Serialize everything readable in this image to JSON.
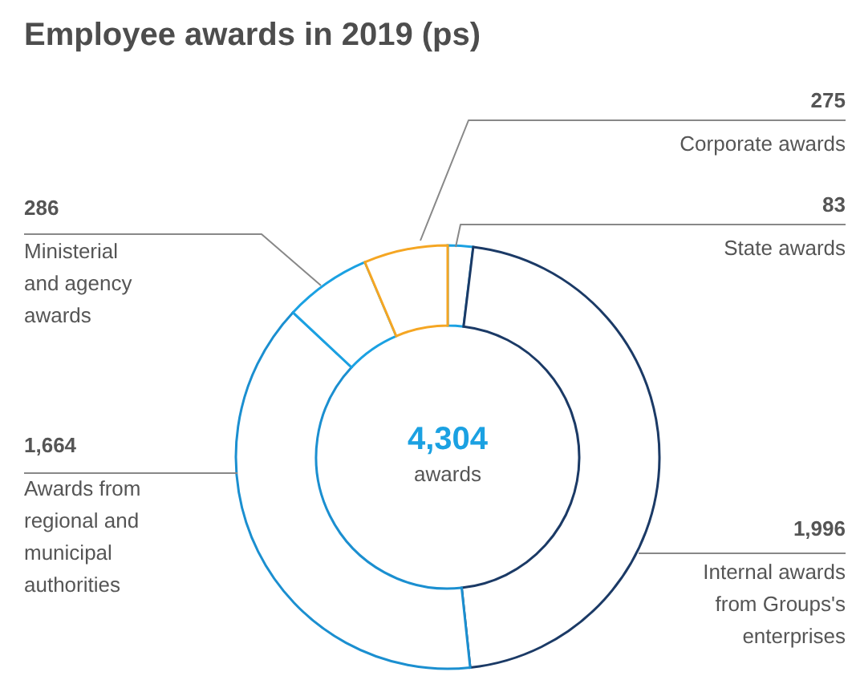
{
  "chart_data": {
    "type": "donut",
    "title": "Employee awards in 2019 (ps)",
    "categories": [
      "State awards",
      "Internal awards from Groups's enterprises",
      "Awards from regional and municipal authorities",
      "Ministerial and agency awards",
      "Corporate awards"
    ],
    "values": [
      83,
      1996,
      1664,
      286,
      275
    ],
    "value_labels": [
      "83",
      "1,996",
      "1,664",
      "286",
      "275"
    ],
    "colors": [
      "#1ba1e2",
      "#1b3a66",
      "#1b8fd0",
      "#1ba1e2",
      "#f5a623"
    ],
    "annotations": [
      "4,304",
      "awards"
    ]
  }
}
